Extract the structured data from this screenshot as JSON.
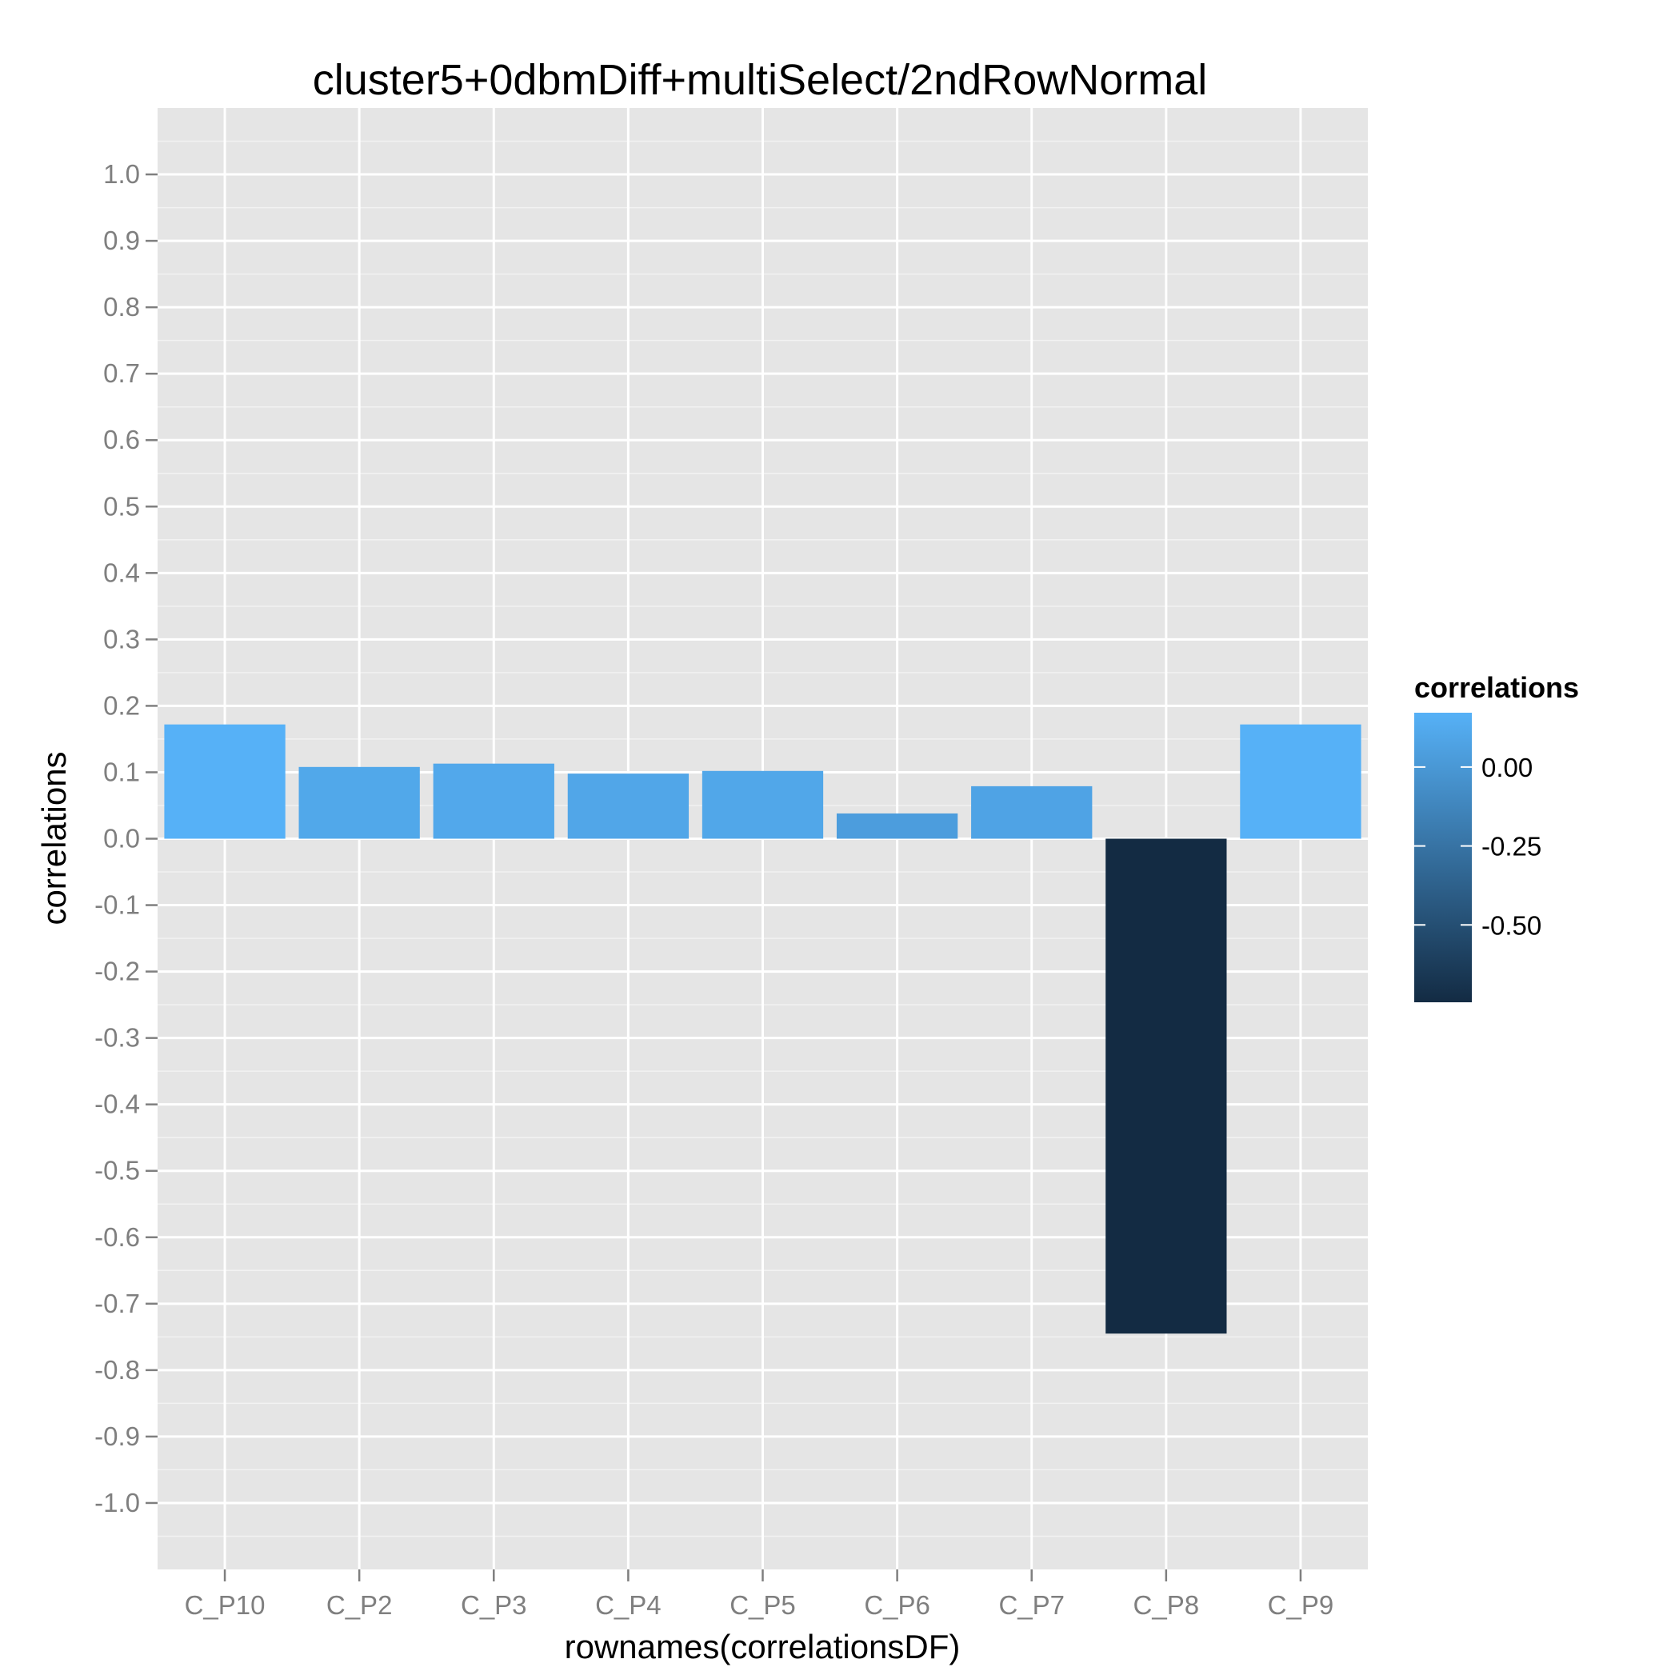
{
  "chart_data": {
    "type": "bar",
    "title": "cluster5+0dbmDiff+multiSelect/2ndRowNormal",
    "xlabel": "rownames(correlationsDF)",
    "ylabel": "correlations",
    "categories": [
      "C_P10",
      "C_P2",
      "C_P3",
      "C_P4",
      "C_P5",
      "C_P6",
      "C_P7",
      "C_P8",
      "C_P9"
    ],
    "values": [
      0.172,
      0.108,
      0.113,
      0.098,
      0.102,
      0.038,
      0.079,
      -0.745,
      0.172
    ],
    "ylim": [
      -1.1,
      1.1
    ],
    "yticks": [
      "-1.0",
      "-0.9",
      "-0.8",
      "-0.7",
      "-0.6",
      "-0.5",
      "-0.4",
      "-0.3",
      "-0.2",
      "-0.1",
      "0.0",
      "0.1",
      "0.2",
      "0.3",
      "0.4",
      "0.5",
      "0.6",
      "0.7",
      "0.8",
      "0.9",
      "1.0"
    ],
    "grid": true,
    "background_color": "#e5e5e5",
    "legend": {
      "title": "correlations",
      "position": "right",
      "labels": [
        "0.00",
        "-0.25",
        "-0.50"
      ],
      "label_values": [
        0.0,
        -0.25,
        -0.5
      ],
      "color_low": "#132b43",
      "color_high": "#56b1f7",
      "range": [
        -0.745,
        0.172
      ]
    }
  }
}
